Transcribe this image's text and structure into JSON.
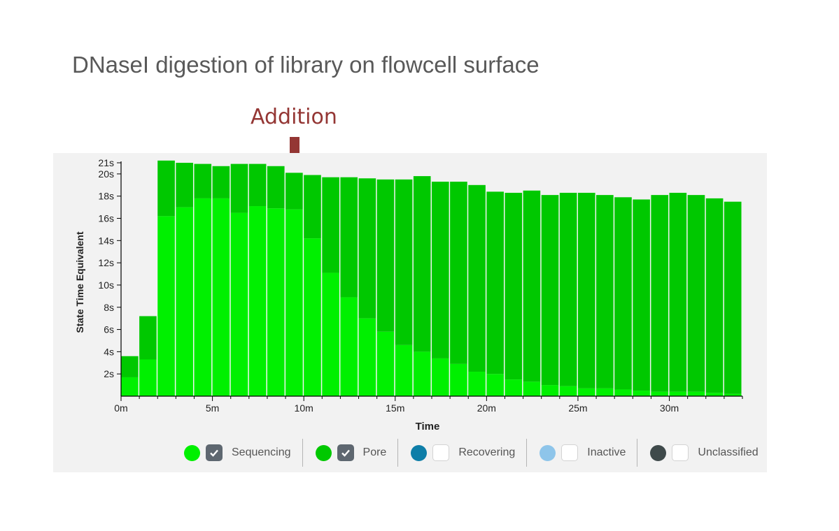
{
  "slide": {
    "title": "DNaseI digestion of library on flowcell surface",
    "annotation": "Addition"
  },
  "colors": {
    "sequencing": "#00f000",
    "pore": "#00c800",
    "recovering": "#0e7ea8",
    "inactive": "#8ec5ea",
    "unclassified": "#3f4a4b",
    "annotation": "#943634"
  },
  "chart_data": {
    "type": "bar",
    "stacked": true,
    "xlabel": "Time",
    "ylabel": "State Time Equivalent",
    "x_ticks": [
      "0m",
      "5m",
      "10m",
      "15m",
      "20m",
      "25m",
      "30m"
    ],
    "y_ticks": [
      "2s",
      "4s",
      "6s",
      "8s",
      "10s",
      "12s",
      "14s",
      "16s",
      "18s",
      "20s",
      "21s"
    ],
    "xlim": [
      0,
      34
    ],
    "ylim": [
      0,
      21
    ],
    "bin_minutes": 1,
    "categories": [
      0,
      1,
      2,
      3,
      4,
      5,
      6,
      7,
      8,
      9,
      10,
      11,
      12,
      13,
      14,
      15,
      16,
      17,
      18,
      19,
      20,
      21,
      22,
      23,
      24,
      25,
      26,
      27,
      28,
      29,
      30,
      31,
      32,
      33
    ],
    "series": [
      {
        "name": "Sequencing",
        "values": [
          1.7,
          3.3,
          16.2,
          17.0,
          17.8,
          17.8,
          16.5,
          17.1,
          16.9,
          16.8,
          14.2,
          11.1,
          8.9,
          7.0,
          5.8,
          4.6,
          4.0,
          3.4,
          2.9,
          2.2,
          2.0,
          1.5,
          1.3,
          1.0,
          0.9,
          0.7,
          0.7,
          0.6,
          0.5,
          0.4,
          0.4,
          0.4,
          0.3,
          0.2
        ]
      },
      {
        "name": "Pore",
        "values": [
          1.9,
          3.9,
          5.0,
          4.0,
          3.1,
          2.9,
          4.4,
          3.8,
          3.8,
          3.3,
          5.7,
          8.6,
          10.8,
          12.6,
          13.7,
          14.9,
          15.8,
          15.9,
          16.4,
          16.8,
          16.4,
          16.8,
          17.2,
          17.1,
          17.4,
          17.6,
          17.4,
          17.3,
          17.2,
          17.7,
          17.9,
          17.7,
          17.5,
          17.3
        ]
      }
    ],
    "legend": [
      {
        "name": "Sequencing",
        "checked": true
      },
      {
        "name": "Pore",
        "checked": true
      },
      {
        "name": "Recovering",
        "checked": false
      },
      {
        "name": "Inactive",
        "checked": false
      },
      {
        "name": "Unclassified",
        "checked": false
      }
    ],
    "grid": false
  }
}
